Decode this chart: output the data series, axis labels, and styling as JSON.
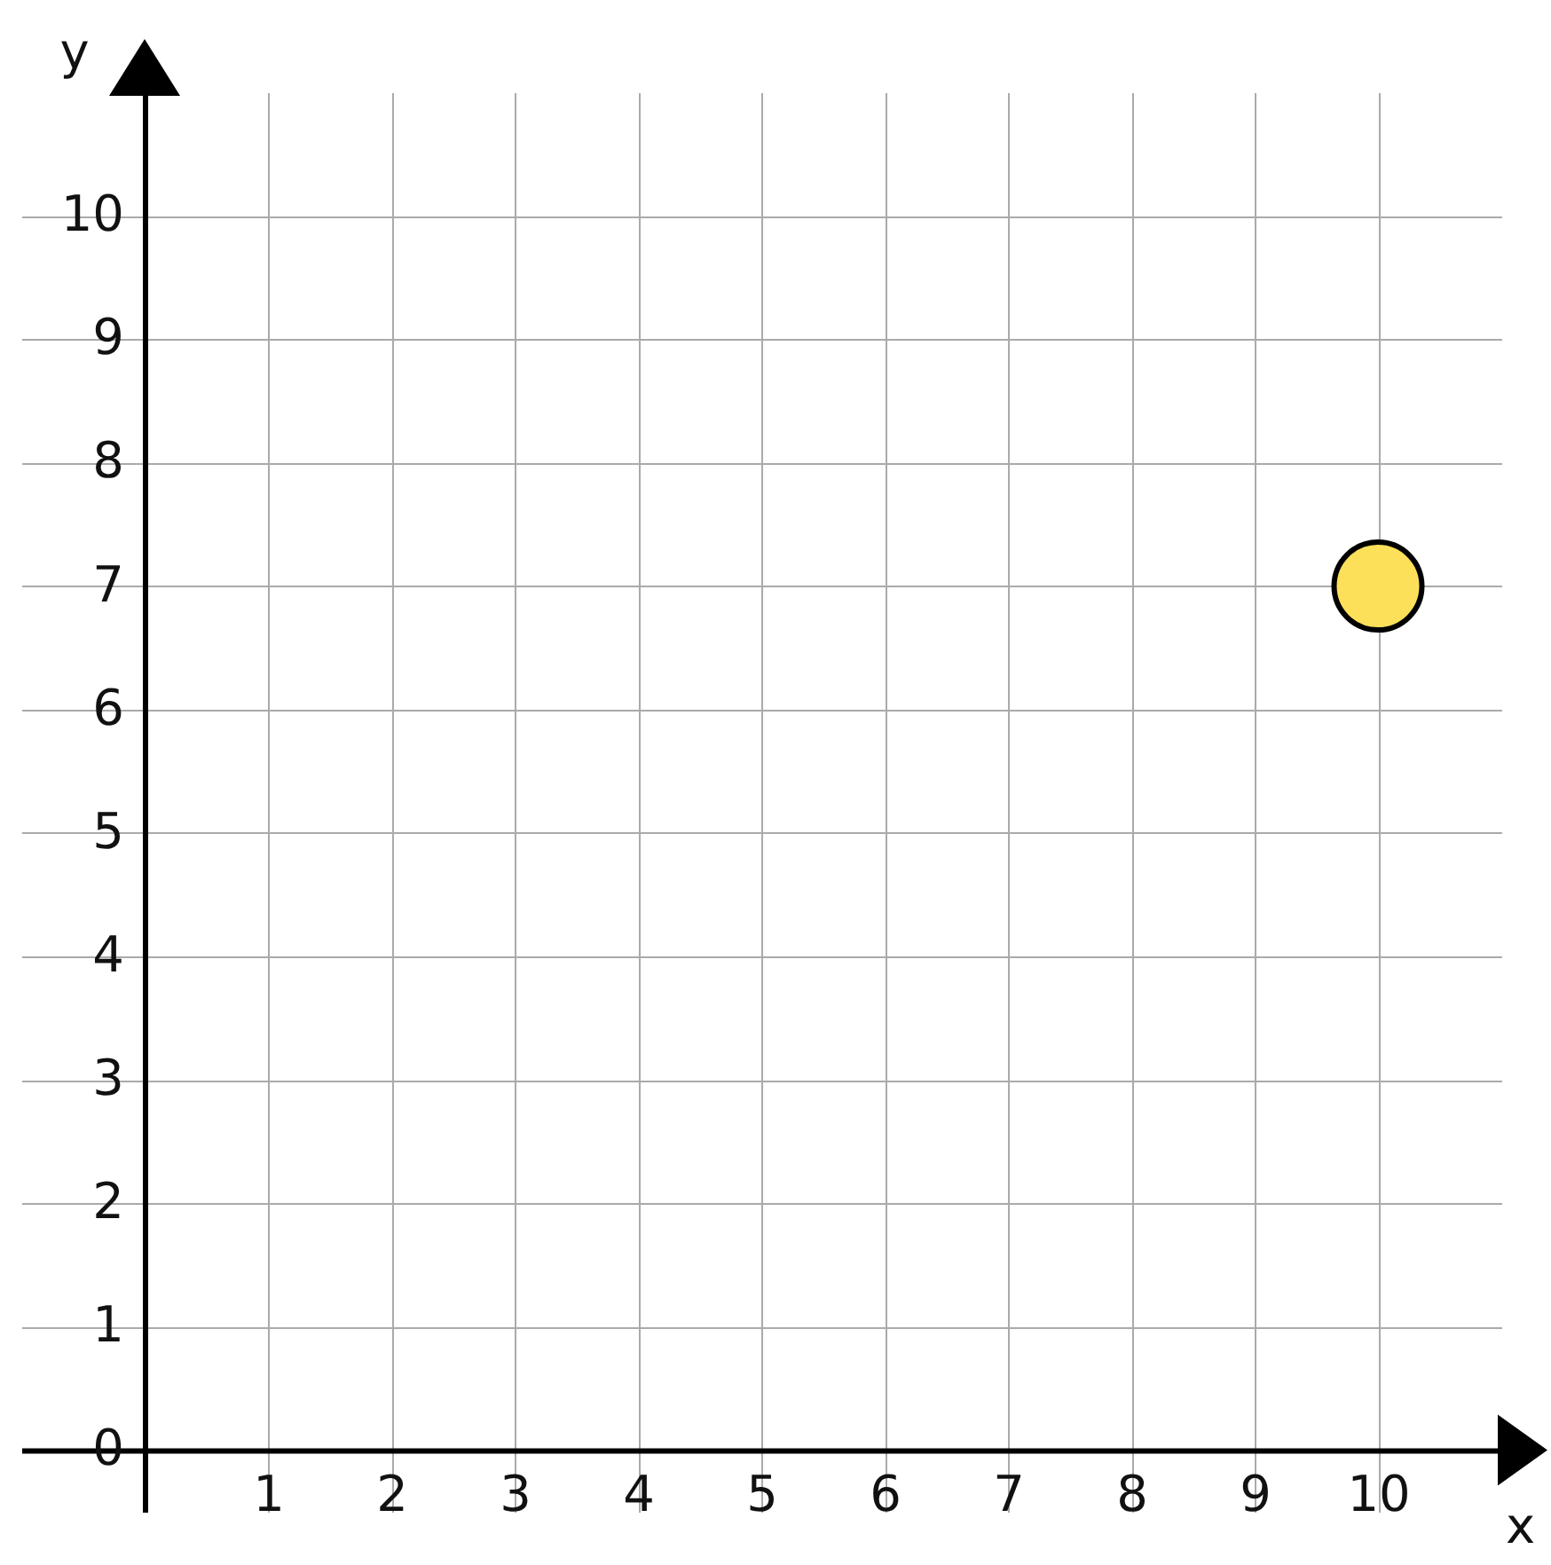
{
  "chart_data": {
    "type": "scatter",
    "xlabel": "x",
    "ylabel": "y",
    "x": [
      10
    ],
    "values": [
      7
    ],
    "color": "#fde05a",
    "marker": "circle",
    "xlim": [
      -1,
      11
    ],
    "ylim": [
      -0.5,
      11
    ],
    "xticks": [
      1,
      2,
      3,
      4,
      5,
      6,
      7,
      8,
      9,
      10
    ],
    "yticks": [
      0,
      1,
      2,
      3,
      4,
      5,
      6,
      7,
      8,
      9,
      10
    ],
    "grid": true
  }
}
